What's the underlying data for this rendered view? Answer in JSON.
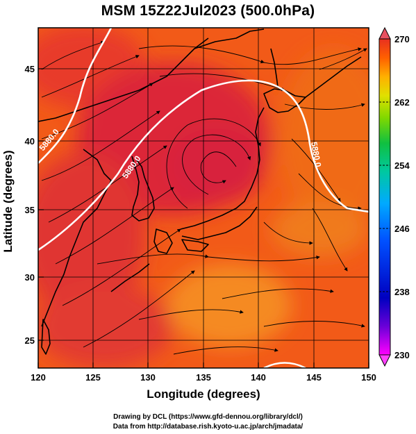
{
  "title": "MSM 15Z22Jul2023 (500.0hPa)",
  "x_axis": {
    "label": "Longitude (degrees)",
    "ticks": [
      "120",
      "125",
      "130",
      "135",
      "140",
      "145",
      "150"
    ],
    "range": [
      120,
      150
    ]
  },
  "y_axis": {
    "label": "Latitude  (degrees)",
    "ticks": [
      "25",
      "30",
      "35",
      "40",
      "45"
    ],
    "range": [
      22.4,
      47.6
    ]
  },
  "colorbar": {
    "ticks": [
      "270",
      "262",
      "254",
      "246",
      "238",
      "230"
    ],
    "range": [
      230,
      270
    ],
    "colors": [
      "#ff00ff",
      "#6a00d8",
      "#0000c0",
      "#0050ff",
      "#00aaff",
      "#00c8a0",
      "#10c040",
      "#80d800",
      "#e0e000",
      "#ffb000",
      "#ff6000",
      "#e83020"
    ]
  },
  "contour_label": "5880.0",
  "credits": {
    "line1": "Drawing by DCL (https://www.gfd-dennou.org/library/dcl/)",
    "line2": "Data from http://database.rish.kyoto-u.ac.jp/arch/jmadata/"
  },
  "map_colors": {
    "background": "#f25a18",
    "warm": "#e83a2a",
    "hot": "#dc2838",
    "cool": "#f58a20",
    "contour": "#ffffff"
  }
}
